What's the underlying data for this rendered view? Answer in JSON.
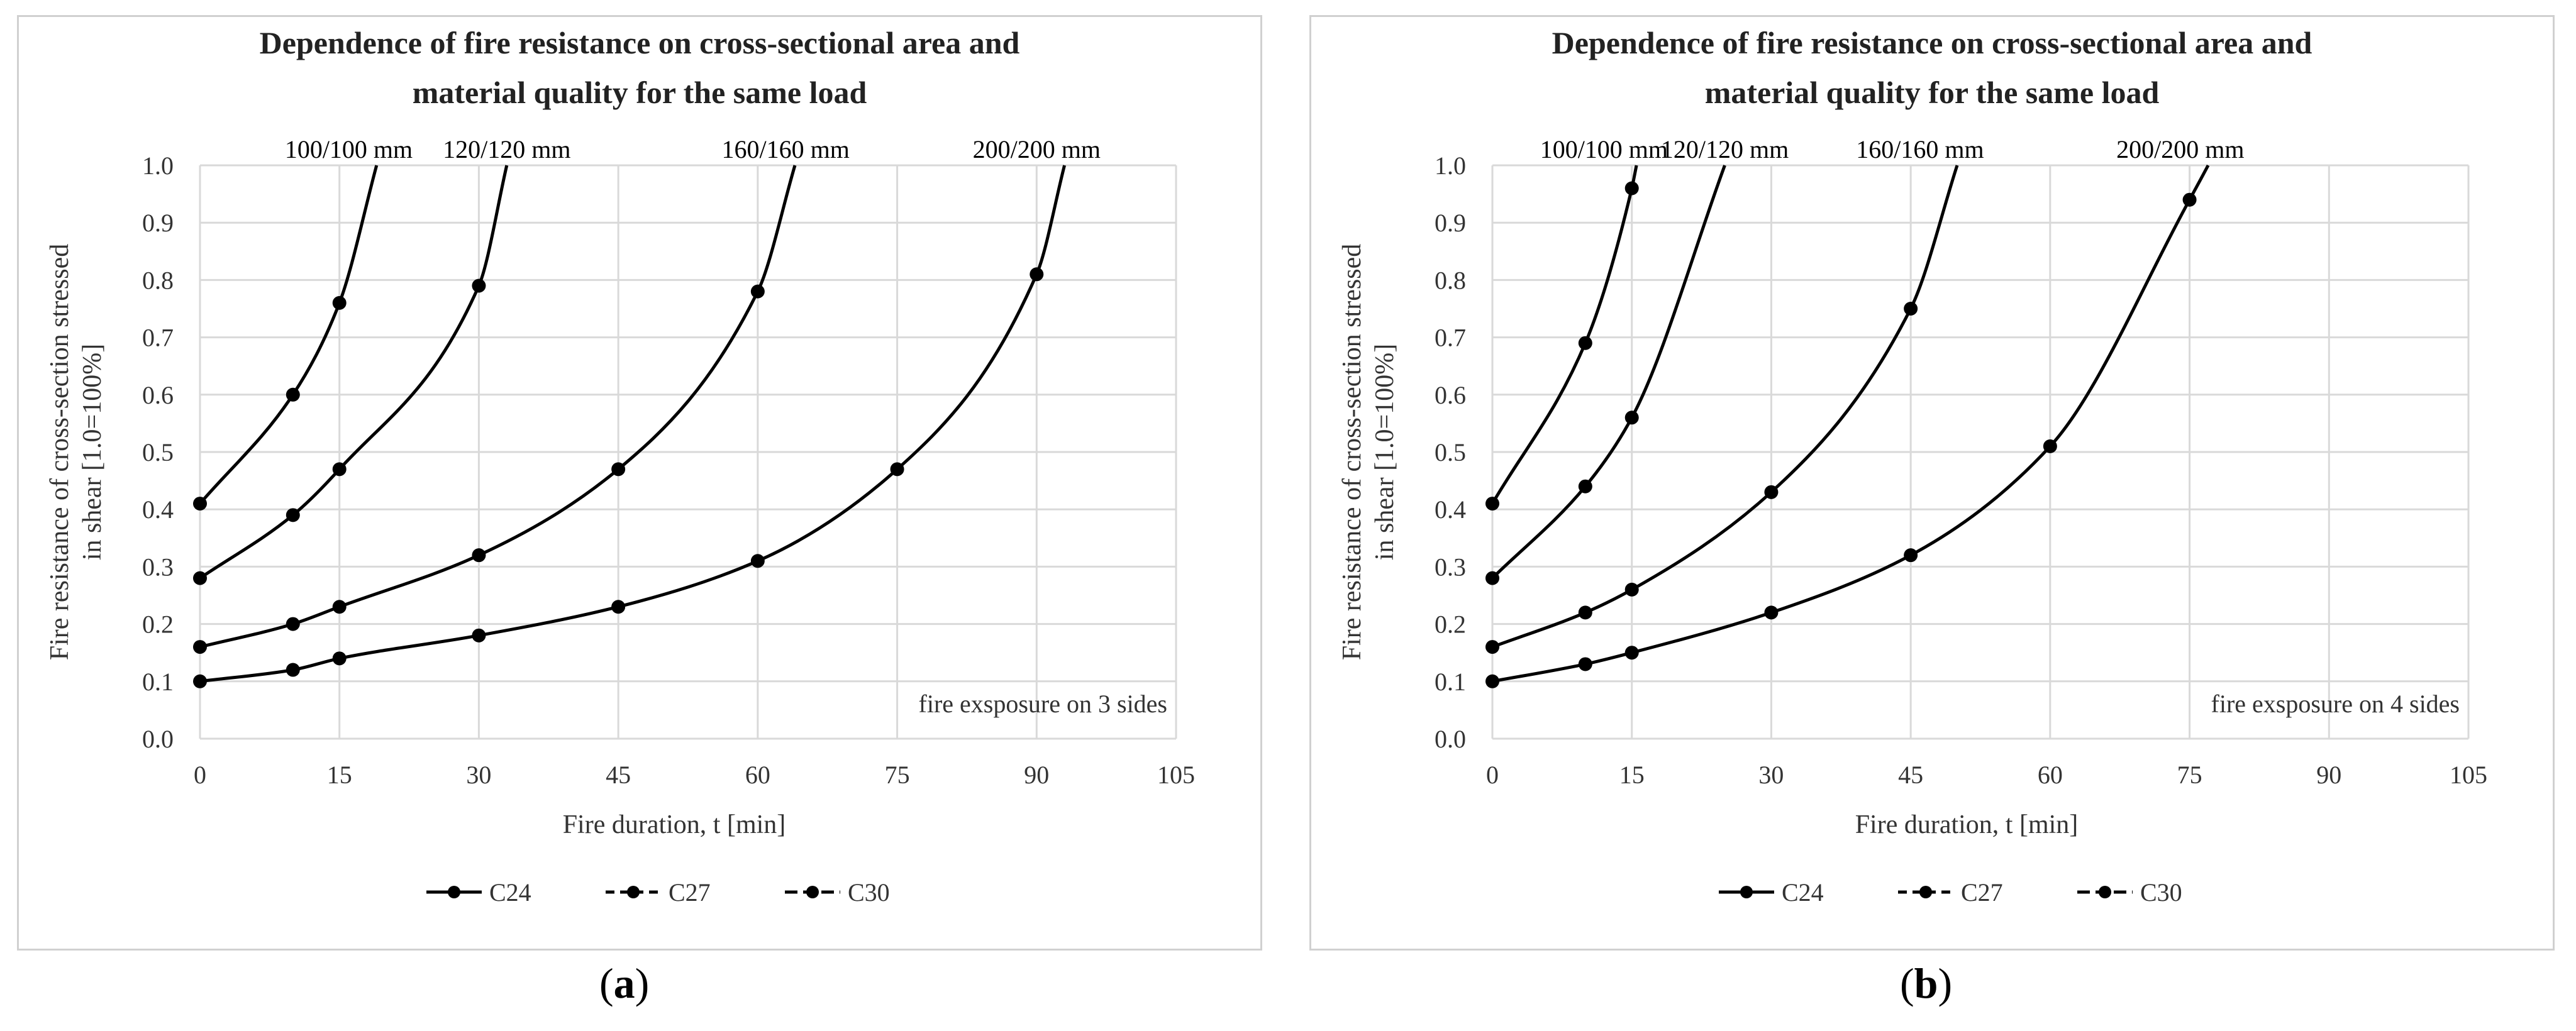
{
  "captions": {
    "a_open": "(",
    "a_letter": "a",
    "a_close": ")",
    "b_open": "(",
    "b_letter": "b",
    "b_close": ")"
  },
  "chart_data": [
    {
      "type": "line",
      "title": [
        "Dependence of fire resistance on cross-sectional area and",
        "material quality for the same load"
      ],
      "xlabel": "Fire duration, t [min]",
      "ylabel": [
        "Fire resistance of cross-section stressed",
        "in shear [1.0=100%]"
      ],
      "xlim": [
        0,
        105
      ],
      "ylim": [
        0,
        1.0
      ],
      "xticks": [
        0,
        15,
        30,
        45,
        60,
        75,
        90,
        105
      ],
      "yticks": [
        "0.0",
        "0.1",
        "0.2",
        "0.3",
        "0.4",
        "0.5",
        "0.6",
        "0.7",
        "0.8",
        "0.9",
        "1.0"
      ],
      "annotation": "fire exsposure on 3 sides",
      "legend": [
        "C24",
        "C27",
        "C30"
      ],
      "legend_placement": "bottom-center",
      "series": [
        {
          "name": "100/100 mm",
          "points": [
            [
              0,
              0.41
            ],
            [
              10,
              0.6
            ],
            [
              15,
              0.76
            ]
          ],
          "end": [
            19,
            1.0
          ],
          "label_x": 16
        },
        {
          "name": "120/120 mm",
          "points": [
            [
              0,
              0.28
            ],
            [
              10,
              0.39
            ],
            [
              15,
              0.47
            ],
            [
              30,
              0.79
            ]
          ],
          "end": [
            33,
            1.0
          ],
          "label_x": 33
        },
        {
          "name": "160/160 mm",
          "points": [
            [
              0,
              0.16
            ],
            [
              10,
              0.2
            ],
            [
              15,
              0.23
            ],
            [
              30,
              0.32
            ],
            [
              45,
              0.47
            ],
            [
              60,
              0.78
            ]
          ],
          "end": [
            64,
            1.0
          ],
          "label_x": 63
        },
        {
          "name": "200/200 mm",
          "points": [
            [
              0,
              0.1
            ],
            [
              10,
              0.12
            ],
            [
              15,
              0.14
            ],
            [
              30,
              0.18
            ],
            [
              45,
              0.23
            ],
            [
              60,
              0.31
            ],
            [
              75,
              0.47
            ],
            [
              90,
              0.81
            ]
          ],
          "end": [
            93,
            1.0
          ],
          "label_x": 90
        }
      ]
    },
    {
      "type": "line",
      "title": [
        "Dependence of fire resistance on cross-sectional area and",
        "material quality for the same load"
      ],
      "xlabel": "Fire duration, t [min]",
      "ylabel": [
        "Fire resistance of cross-section stressed",
        "in shear [1.0=100%]"
      ],
      "xlim": [
        0,
        105
      ],
      "ylim": [
        0,
        1.0
      ],
      "xticks": [
        0,
        15,
        30,
        45,
        60,
        75,
        90,
        105
      ],
      "yticks": [
        "0.0",
        "0.1",
        "0.2",
        "0.3",
        "0.4",
        "0.5",
        "0.6",
        "0.7",
        "0.8",
        "0.9",
        "1.0"
      ],
      "annotation": "fire exsposure on 4 sides",
      "legend": [
        "C24",
        "C27",
        "C30"
      ],
      "legend_placement": "bottom-center",
      "series": [
        {
          "name": "100/100 mm",
          "points": [
            [
              0,
              0.41
            ],
            [
              10,
              0.69
            ],
            [
              15,
              0.96
            ]
          ],
          "end": [
            15.5,
            1.0
          ],
          "label_x": 12
        },
        {
          "name": "120/120 mm",
          "points": [
            [
              0,
              0.28
            ],
            [
              10,
              0.44
            ],
            [
              15,
              0.56
            ]
          ],
          "end": [
            25,
            1.0
          ],
          "label_x": 25
        },
        {
          "name": "160/160 mm",
          "points": [
            [
              0,
              0.16
            ],
            [
              10,
              0.22
            ],
            [
              15,
              0.26
            ],
            [
              30,
              0.43
            ],
            [
              45,
              0.75
            ]
          ],
          "end": [
            50,
            1.0
          ],
          "label_x": 46
        },
        {
          "name": "200/200 mm",
          "points": [
            [
              0,
              0.1
            ],
            [
              10,
              0.13
            ],
            [
              15,
              0.15
            ],
            [
              30,
              0.22
            ],
            [
              45,
              0.32
            ],
            [
              60,
              0.51
            ],
            [
              75,
              0.94
            ]
          ],
          "end": [
            77,
            1.0
          ],
          "label_x": 74
        }
      ]
    }
  ]
}
